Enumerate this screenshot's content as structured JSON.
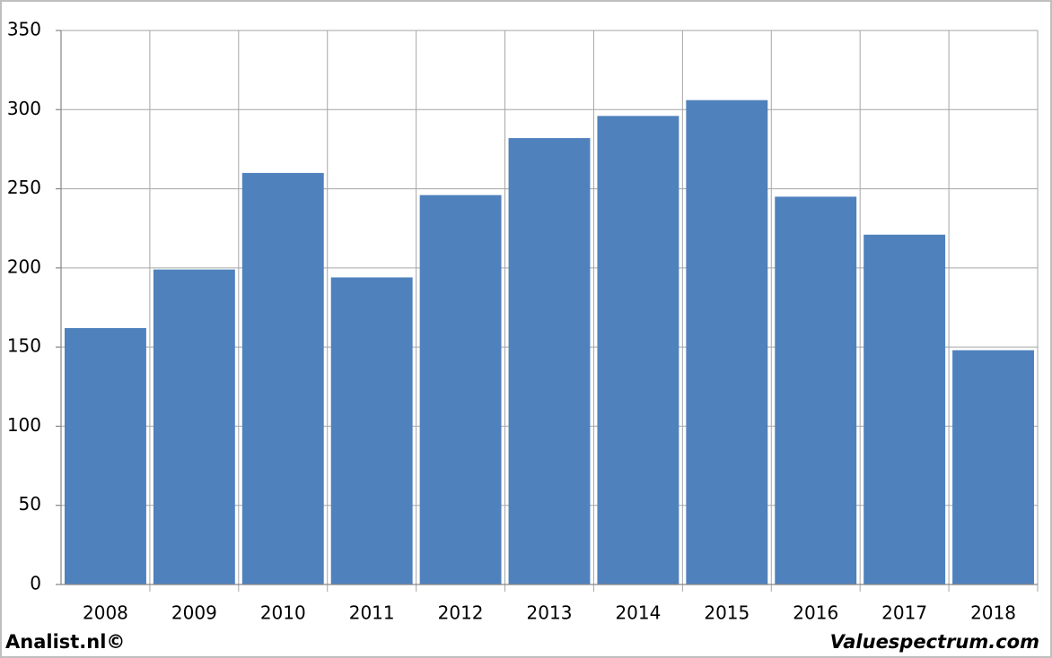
{
  "chart_data": {
    "type": "bar",
    "categories": [
      "2008",
      "2009",
      "2010",
      "2011",
      "2012",
      "2013",
      "2014",
      "2015",
      "2016",
      "2017",
      "2018"
    ],
    "values": [
      162,
      199,
      260,
      194,
      246,
      282,
      296,
      306,
      245,
      221,
      148
    ],
    "color": "#4f81bd",
    "ylim": [
      0,
      350
    ],
    "yticks": [
      0,
      50,
      100,
      150,
      200,
      250,
      300,
      350
    ],
    "grid": true,
    "source_left": "Analist.nl©",
    "source_right": "Valuespectrum.com"
  }
}
